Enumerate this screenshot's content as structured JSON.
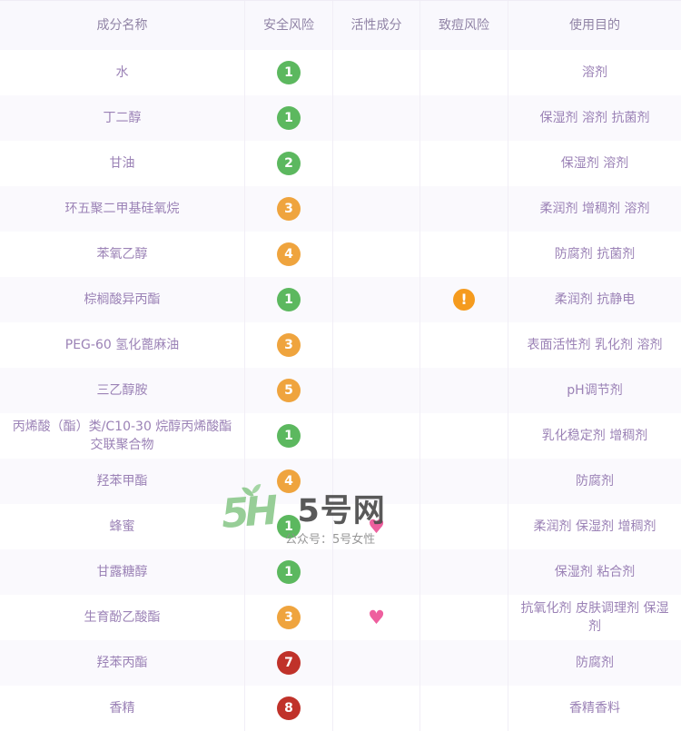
{
  "table": {
    "headers": [
      "成分名称",
      "安全风险",
      "活性成分",
      "致痘风险",
      "使用目的"
    ],
    "rows": [
      {
        "name": "水",
        "safety": {
          "level": "1",
          "color": "green"
        },
        "active": false,
        "acne": false,
        "purpose": "溶剂"
      },
      {
        "name": "丁二醇",
        "safety": {
          "level": "1",
          "color": "green"
        },
        "active": false,
        "acne": false,
        "purpose": "保湿剂 溶剂 抗菌剂"
      },
      {
        "name": "甘油",
        "safety": {
          "level": "2",
          "color": "green"
        },
        "active": false,
        "acne": false,
        "purpose": "保湿剂 溶剂"
      },
      {
        "name": "环五聚二甲基硅氧烷",
        "safety": {
          "level": "3",
          "color": "orange"
        },
        "active": false,
        "acne": false,
        "purpose": "柔润剂 增稠剂 溶剂"
      },
      {
        "name": "苯氧乙醇",
        "safety": {
          "level": "4",
          "color": "orange"
        },
        "active": false,
        "acne": false,
        "purpose": "防腐剂 抗菌剂"
      },
      {
        "name": "棕榈酸异丙酯",
        "safety": {
          "level": "1",
          "color": "green"
        },
        "active": false,
        "acne": true,
        "purpose": "柔润剂 抗静电"
      },
      {
        "name": "PEG-60 氢化蓖麻油",
        "safety": {
          "level": "3",
          "color": "orange"
        },
        "active": false,
        "acne": false,
        "purpose": "表面活性剂 乳化剂 溶剂"
      },
      {
        "name": "三乙醇胺",
        "safety": {
          "level": "5",
          "color": "orange"
        },
        "active": false,
        "acne": false,
        "purpose": "pH调节剂"
      },
      {
        "name": "丙烯酸（酯）类/C10-30 烷醇丙烯酸酯交联聚合物",
        "safety": {
          "level": "1",
          "color": "green"
        },
        "active": false,
        "acne": false,
        "purpose": "乳化稳定剂 增稠剂"
      },
      {
        "name": "羟苯甲酯",
        "safety": {
          "level": "4",
          "color": "orange"
        },
        "active": false,
        "acne": false,
        "purpose": "防腐剂"
      },
      {
        "name": "蜂蜜",
        "safety": {
          "level": "1",
          "color": "green"
        },
        "active": true,
        "acne": false,
        "purpose": "柔润剂 保湿剂 增稠剂"
      },
      {
        "name": "甘露糖醇",
        "safety": {
          "level": "1",
          "color": "green"
        },
        "active": false,
        "acne": false,
        "purpose": "保湿剂 粘合剂"
      },
      {
        "name": "生育酚乙酸酯",
        "safety": {
          "level": "3",
          "color": "orange"
        },
        "active": true,
        "acne": false,
        "purpose": "抗氧化剂 皮肤调理剂 保湿剂"
      },
      {
        "name": "羟苯丙酯",
        "safety": {
          "level": "7",
          "color": "red"
        },
        "active": false,
        "acne": false,
        "purpose": "防腐剂"
      },
      {
        "name": "香精",
        "safety": {
          "level": "8",
          "color": "red"
        },
        "active": false,
        "acne": false,
        "purpose": "香精香料"
      }
    ]
  },
  "icons": {
    "active_ingredient": {
      "name": "heart-icon",
      "glyph": "♥",
      "color": "#ee5f9e"
    },
    "acne_risk": {
      "name": "warning-exclamation-icon",
      "glyph": "!",
      "color": "#f59b1e"
    }
  },
  "badge_colors": {
    "green": "#5cb85f",
    "orange": "#efa43e",
    "red": "#c0322a"
  },
  "watermark": {
    "logo": "5H",
    "site_name": "5号网",
    "subtitle": "公众号：5号女性",
    "logo_color": "#8fca8f"
  }
}
